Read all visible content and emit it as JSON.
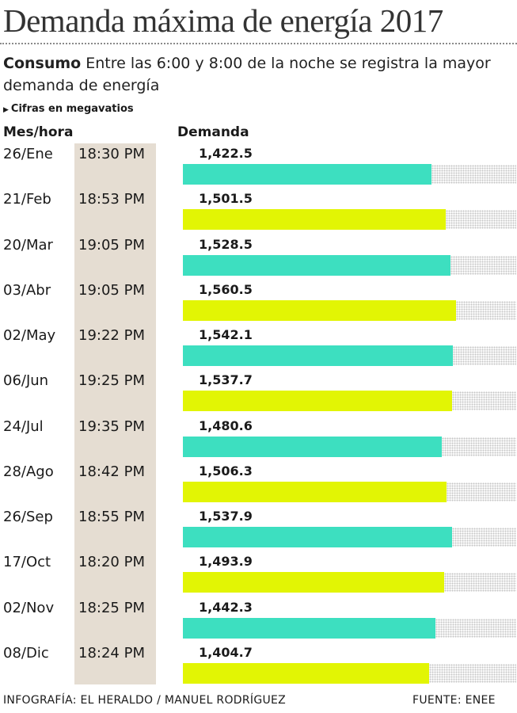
{
  "title": "Demanda máxima de energía 2017",
  "subtitle_lead": "Consumo",
  "subtitle_text": "Entre las 6:00 y 8:00 de la noche se registra la mayor demanda de energía",
  "note": "Cifras en megavatios",
  "headers": {
    "left": "Mes/hora",
    "right": "Demanda"
  },
  "colors": {
    "teal": "#3ddfc0",
    "yellow": "#e2f504",
    "shade": "#e5ddd2",
    "dots": "#c6c6c6"
  },
  "chart_data": {
    "type": "bar",
    "orientation": "horizontal",
    "title": "Demanda máxima de energía 2017",
    "units": "megavatios",
    "categories": [
      "26/Ene",
      "21/Feb",
      "20/Mar",
      "03/Abr",
      "02/May",
      "06/Jun",
      "24/Jul",
      "28/Ago",
      "26/Sep",
      "17/Oct",
      "02/Nov",
      "08/Dic"
    ],
    "times": [
      "18:30 PM",
      "18:53 PM",
      "19:05 PM",
      "19:05 PM",
      "19:22 PM",
      "19:25 PM",
      "19:35 PM",
      "18:42 PM",
      "18:55 PM",
      "18:20 PM",
      "18:25 PM",
      "18:24 PM"
    ],
    "values": [
      1422.5,
      1501.5,
      1528.5,
      1560.5,
      1542.1,
      1537.7,
      1480.6,
      1506.3,
      1537.9,
      1493.9,
      1442.3,
      1404.7
    ],
    "value_labels": [
      "1,422.5",
      "1,501.5",
      "1,528.5",
      "1,560.5",
      "1,542.1",
      "1,537.7",
      "1,480.6",
      "1,506.3",
      "1,537.9",
      "1,493.9",
      "1,442.3",
      "1,404.7"
    ],
    "bar_colors": [
      "teal",
      "yellow",
      "teal",
      "yellow",
      "teal",
      "yellow",
      "teal",
      "yellow",
      "teal",
      "yellow",
      "teal",
      "yellow"
    ],
    "xlim": [
      0,
      1700
    ],
    "grid": false,
    "legend": "none"
  },
  "footer": {
    "credit": "INFOGRAFÍA: EL HERALDO / MANUEL RODRÍGUEZ",
    "source": "FUENTE: ENEE"
  }
}
